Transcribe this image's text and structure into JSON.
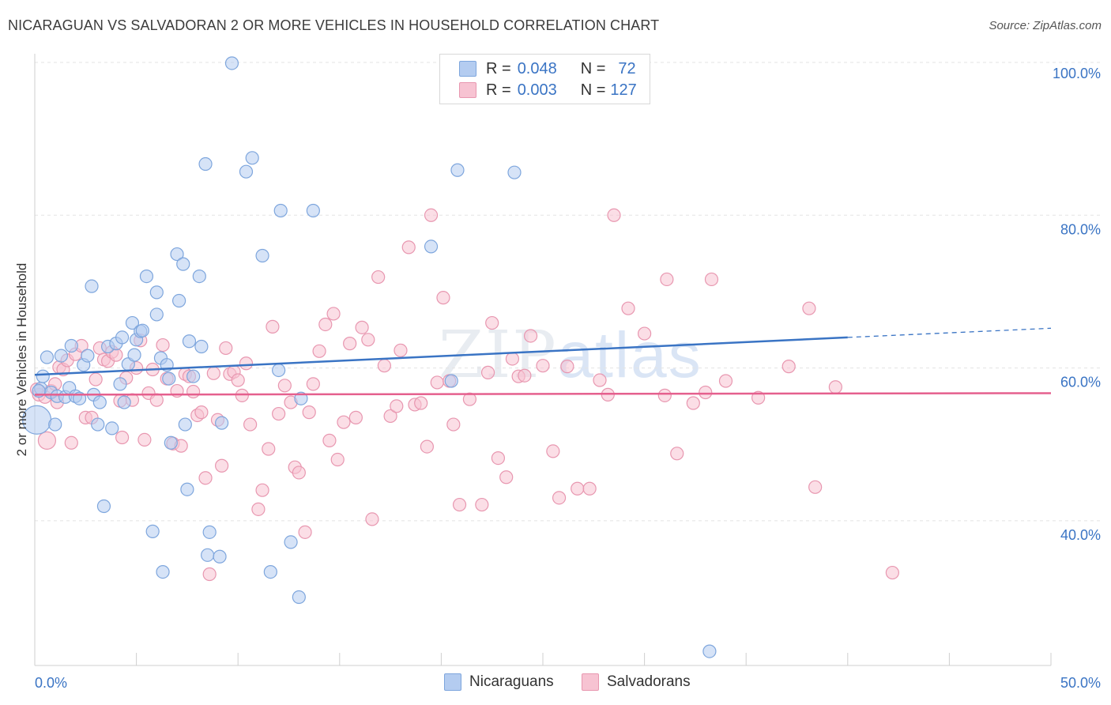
{
  "title": "NICARAGUAN VS SALVADORAN 2 OR MORE VEHICLES IN HOUSEHOLD CORRELATION CHART",
  "source": "Source: ZipAtlas.com",
  "watermark": {
    "zip": "ZIP",
    "atlas": "atlas"
  },
  "legend_stats": [
    {
      "r_label": "R =",
      "r_value": "0.048",
      "n_label": "N =",
      "n_value": "72"
    },
    {
      "r_label": "R =",
      "r_value": "0.003",
      "n_label": "N =",
      "n_value": "127"
    }
  ],
  "chart_data": {
    "type": "scatter",
    "title": "NICARAGUAN VS SALVADORAN 2 OR MORE VEHICLES IN HOUSEHOLD CORRELATION CHART",
    "xlabel": "",
    "ylabel": "2 or more Vehicles in Household",
    "xlim": [
      0,
      50
    ],
    "ylim": [
      20,
      101
    ],
    "x_tick_labels": [
      "0.0%",
      "50.0%"
    ],
    "y_ticks": [
      40,
      60,
      80,
      100
    ],
    "y_tick_labels": [
      "40.0%",
      "60.0%",
      "80.0%",
      "100.0%"
    ],
    "colors": {
      "nicaraguans_fill": "#b4ccf0",
      "nicaraguans_stroke": "#7ea6dd",
      "nicaraguans_line": "#3a74c4",
      "salvadorans_fill": "#f7c3d2",
      "salvadorans_stroke": "#e897b0",
      "salvadorans_line": "#e5608e"
    },
    "series": [
      {
        "name": "Nicaraguans",
        "trend": {
          "x0": 0,
          "y0": 59.1,
          "x1": 40,
          "y1": 64.0,
          "dash_x1": 50,
          "dash_y1": 65.2
        },
        "points": [
          [
            0.1,
            53.2
          ],
          [
            0.3,
            57.3
          ],
          [
            0.4,
            58.9
          ],
          [
            0.6,
            61.4
          ],
          [
            0.8,
            56.8
          ],
          [
            1.0,
            52.6
          ],
          [
            1.1,
            56.3
          ],
          [
            1.3,
            61.6
          ],
          [
            1.5,
            56.2
          ],
          [
            1.7,
            57.4
          ],
          [
            1.8,
            62.9
          ],
          [
            2.0,
            56.3
          ],
          [
            2.2,
            56.0
          ],
          [
            2.4,
            60.4
          ],
          [
            2.6,
            61.6
          ],
          [
            2.8,
            70.7
          ],
          [
            2.9,
            56.5
          ],
          [
            3.1,
            52.6
          ],
          [
            3.2,
            55.5
          ],
          [
            3.4,
            41.9
          ],
          [
            3.6,
            62.8
          ],
          [
            3.8,
            52.1
          ],
          [
            4.0,
            63.2
          ],
          [
            4.2,
            57.9
          ],
          [
            4.3,
            64.0
          ],
          [
            4.4,
            55.5
          ],
          [
            4.6,
            60.5
          ],
          [
            4.8,
            65.9
          ],
          [
            4.9,
            61.7
          ],
          [
            5.0,
            63.7
          ],
          [
            5.2,
            64.8
          ],
          [
            5.3,
            64.9
          ],
          [
            5.5,
            72.0
          ],
          [
            5.8,
            38.6
          ],
          [
            6.0,
            69.9
          ],
          [
            6.0,
            67.0
          ],
          [
            6.2,
            61.3
          ],
          [
            6.3,
            33.3
          ],
          [
            6.5,
            60.4
          ],
          [
            6.6,
            58.6
          ],
          [
            6.7,
            50.2
          ],
          [
            7.0,
            74.9
          ],
          [
            7.1,
            68.8
          ],
          [
            7.3,
            73.6
          ],
          [
            7.4,
            52.6
          ],
          [
            7.5,
            44.1
          ],
          [
            7.6,
            63.5
          ],
          [
            7.8,
            58.9
          ],
          [
            8.1,
            72.0
          ],
          [
            8.2,
            62.8
          ],
          [
            8.4,
            86.7
          ],
          [
            8.5,
            35.5
          ],
          [
            8.6,
            38.5
          ],
          [
            9.1,
            35.3
          ],
          [
            9.2,
            52.8
          ],
          [
            9.7,
            99.9
          ],
          [
            10.4,
            85.7
          ],
          [
            10.7,
            87.5
          ],
          [
            11.2,
            74.7
          ],
          [
            11.6,
            33.3
          ],
          [
            12.0,
            59.7
          ],
          [
            12.1,
            80.6
          ],
          [
            12.6,
            37.2
          ],
          [
            13.0,
            30.0
          ],
          [
            13.1,
            56.0
          ],
          [
            13.7,
            80.6
          ],
          [
            19.5,
            75.9
          ],
          [
            20.5,
            58.3
          ],
          [
            20.8,
            85.9
          ],
          [
            23.6,
            85.6
          ],
          [
            33.2,
            22.9
          ],
          [
            0.2,
            57.0
          ]
        ]
      },
      {
        "name": "Salvadorans",
        "trend": {
          "x0": 0,
          "y0": 56.5,
          "x1": 50,
          "y1": 56.7
        },
        "points": [
          [
            0.2,
            56.5
          ],
          [
            0.5,
            56.2
          ],
          [
            0.6,
            50.5
          ],
          [
            0.8,
            57.0
          ],
          [
            1.0,
            57.9
          ],
          [
            1.2,
            60.1
          ],
          [
            1.4,
            59.8
          ],
          [
            1.6,
            61.0
          ],
          [
            1.8,
            50.2
          ],
          [
            2.0,
            61.8
          ],
          [
            2.3,
            62.9
          ],
          [
            2.5,
            53.5
          ],
          [
            2.8,
            53.5
          ],
          [
            3.0,
            58.5
          ],
          [
            3.2,
            62.6
          ],
          [
            3.4,
            61.1
          ],
          [
            3.6,
            60.9
          ],
          [
            3.8,
            62.1
          ],
          [
            4.0,
            61.7
          ],
          [
            4.2,
            55.7
          ],
          [
            4.3,
            50.9
          ],
          [
            4.5,
            58.7
          ],
          [
            4.8,
            55.8
          ],
          [
            5.0,
            60.0
          ],
          [
            5.2,
            63.6
          ],
          [
            5.4,
            50.6
          ],
          [
            5.6,
            56.7
          ],
          [
            5.8,
            59.8
          ],
          [
            6.0,
            55.8
          ],
          [
            6.3,
            63.0
          ],
          [
            6.5,
            58.6
          ],
          [
            6.8,
            50.1
          ],
          [
            7.0,
            57.0
          ],
          [
            7.2,
            49.8
          ],
          [
            7.4,
            59.2
          ],
          [
            7.6,
            58.9
          ],
          [
            7.8,
            56.9
          ],
          [
            8.0,
            53.8
          ],
          [
            8.2,
            54.2
          ],
          [
            8.4,
            45.6
          ],
          [
            8.6,
            33.0
          ],
          [
            8.8,
            59.3
          ],
          [
            9.0,
            53.2
          ],
          [
            9.2,
            47.2
          ],
          [
            9.4,
            62.6
          ],
          [
            9.6,
            59.2
          ],
          [
            9.8,
            59.5
          ],
          [
            10.0,
            58.4
          ],
          [
            10.2,
            56.4
          ],
          [
            10.4,
            60.6
          ],
          [
            10.6,
            52.6
          ],
          [
            11.0,
            41.5
          ],
          [
            11.2,
            44.0
          ],
          [
            11.5,
            49.4
          ],
          [
            11.7,
            65.4
          ],
          [
            12.0,
            54.0
          ],
          [
            12.3,
            57.7
          ],
          [
            12.6,
            55.5
          ],
          [
            12.8,
            47.0
          ],
          [
            13.0,
            46.3
          ],
          [
            13.3,
            38.5
          ],
          [
            13.5,
            54.2
          ],
          [
            13.7,
            57.9
          ],
          [
            14.0,
            62.2
          ],
          [
            14.3,
            65.7
          ],
          [
            14.5,
            50.5
          ],
          [
            14.7,
            67.1
          ],
          [
            14.9,
            48.0
          ],
          [
            15.2,
            52.9
          ],
          [
            15.5,
            63.2
          ],
          [
            15.8,
            53.5
          ],
          [
            16.1,
            65.3
          ],
          [
            16.4,
            63.7
          ],
          [
            16.6,
            40.2
          ],
          [
            16.9,
            71.9
          ],
          [
            17.2,
            60.3
          ],
          [
            17.5,
            53.7
          ],
          [
            17.8,
            55.0
          ],
          [
            18.0,
            62.3
          ],
          [
            18.4,
            75.8
          ],
          [
            18.7,
            55.2
          ],
          [
            19.0,
            55.4
          ],
          [
            19.3,
            49.7
          ],
          [
            19.5,
            80.0
          ],
          [
            19.8,
            58.1
          ],
          [
            20.1,
            69.2
          ],
          [
            20.4,
            58.3
          ],
          [
            20.6,
            52.6
          ],
          [
            20.9,
            42.1
          ],
          [
            21.4,
            55.9
          ],
          [
            22.0,
            42.1
          ],
          [
            22.3,
            59.4
          ],
          [
            22.5,
            65.9
          ],
          [
            22.8,
            48.2
          ],
          [
            23.2,
            45.7
          ],
          [
            23.5,
            61.2
          ],
          [
            23.8,
            58.9
          ],
          [
            24.1,
            59.0
          ],
          [
            24.4,
            64.2
          ],
          [
            25.0,
            60.3
          ],
          [
            25.5,
            49.1
          ],
          [
            25.8,
            43.0
          ],
          [
            26.2,
            60.2
          ],
          [
            26.7,
            44.2
          ],
          [
            27.3,
            44.2
          ],
          [
            27.8,
            58.4
          ],
          [
            28.2,
            56.5
          ],
          [
            28.5,
            80.0
          ],
          [
            29.2,
            67.8
          ],
          [
            30.0,
            64.5
          ],
          [
            31.1,
            71.6
          ],
          [
            31.6,
            48.8
          ],
          [
            32.4,
            55.4
          ],
          [
            33.3,
            71.6
          ],
          [
            34.0,
            58.3
          ],
          [
            35.6,
            56.1
          ],
          [
            37.1,
            60.2
          ],
          [
            38.1,
            67.8
          ],
          [
            38.4,
            44.4
          ],
          [
            39.4,
            57.5
          ],
          [
            42.2,
            33.2
          ],
          [
            0.1,
            57.2
          ],
          [
            1.1,
            55.5
          ],
          [
            31.0,
            56.4
          ],
          [
            33.0,
            56.8
          ]
        ]
      }
    ]
  },
  "legend": {
    "series_a": "Nicaraguans",
    "series_b": "Salvadorans"
  }
}
